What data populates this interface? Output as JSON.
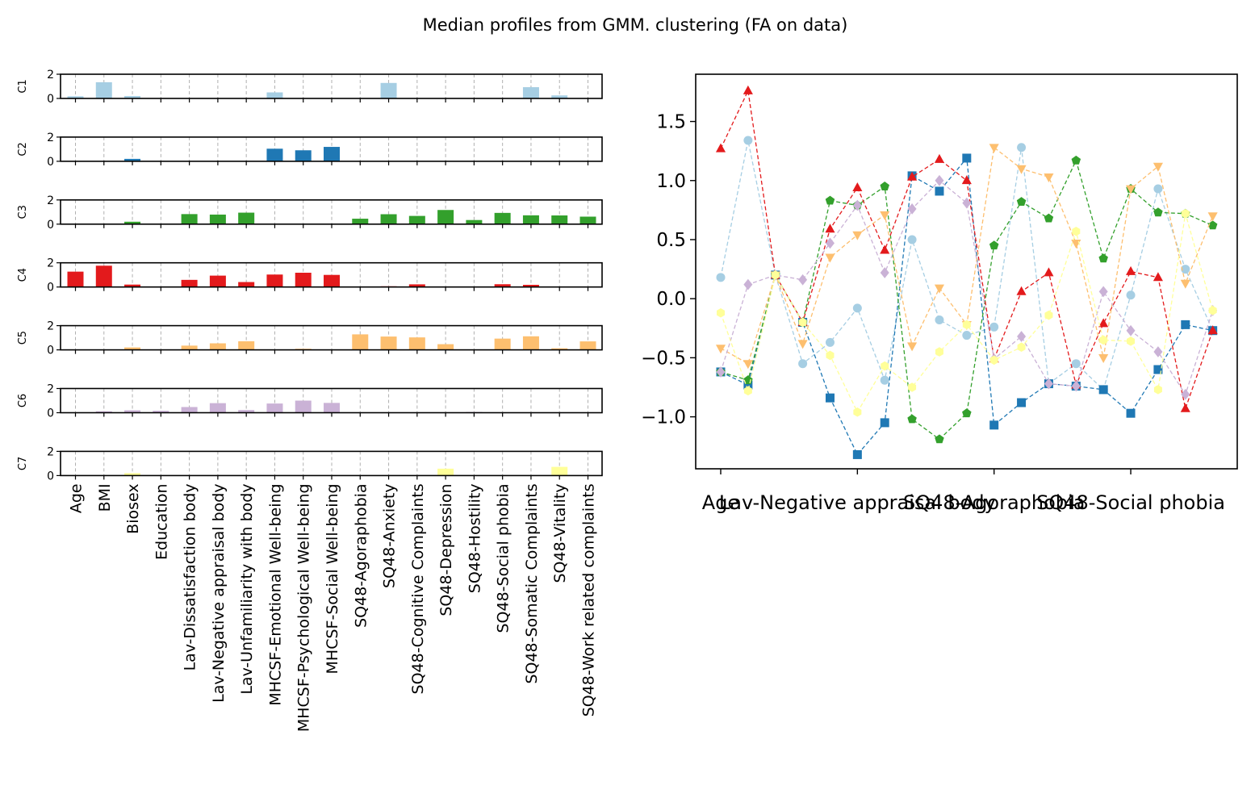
{
  "chart_data": {
    "title": "Median profiles from GMM. clustering (FA on data)",
    "categories": [
      "Age",
      "BMI",
      "Biosex",
      "Education",
      "Lav-Dissatisfaction body",
      "Lav-Negative appraisal body",
      "Lav-Unfamiliarity with body",
      "MHCSF-Emotional Well-being",
      "MHCSF-Psychological Well-being",
      "MHCSF-Social Well-being",
      "SQ48-Agoraphobia",
      "SQ48-Anxiety",
      "SQ48-Cognitive Complaints",
      "SQ48-Depression",
      "SQ48-Hostility",
      "SQ48-Social phobia",
      "SQ48-Somatic Complaints",
      "SQ48-Vitality",
      "SQ48-Work related complaints"
    ],
    "clusters": [
      {
        "name": "C1",
        "color": "#a6cee3",
        "marker": "circle",
        "values": [
          0.18,
          1.34,
          0.2,
          -0.55,
          -0.37,
          -0.08,
          -0.69,
          0.5,
          -0.18,
          -0.31,
          -0.24,
          1.28,
          -0.72,
          -0.55,
          -0.77,
          0.03,
          0.93,
          0.25,
          -0.27
        ]
      },
      {
        "name": "C2",
        "color": "#1f78b4",
        "marker": "square",
        "values": [
          -0.62,
          -0.73,
          0.2,
          -0.2,
          -0.84,
          -1.32,
          -1.05,
          1.04,
          0.91,
          1.19,
          -1.07,
          -0.88,
          -0.72,
          -0.74,
          -0.77,
          -0.97,
          -0.6,
          -0.22,
          -0.27
        ]
      },
      {
        "name": "C3",
        "color": "#33a02c",
        "marker": "pentagon",
        "values": [
          -0.62,
          -0.69,
          0.2,
          -0.2,
          0.83,
          0.79,
          0.95,
          -1.02,
          -1.19,
          -0.97,
          0.45,
          0.82,
          0.68,
          1.17,
          0.34,
          0.93,
          0.73,
          0.72,
          0.62
        ]
      },
      {
        "name": "C4",
        "color": "#e31a1c",
        "marker": "triangle-up",
        "values": [
          1.27,
          1.76,
          0.2,
          -0.2,
          0.59,
          0.94,
          0.41,
          1.03,
          1.18,
          1.0,
          -0.51,
          0.06,
          0.22,
          -0.73,
          -0.21,
          0.23,
          0.18,
          -0.93,
          -0.27
        ]
      },
      {
        "name": "C5",
        "color": "#fdbf6f",
        "marker": "triangle-down",
        "values": [
          -0.42,
          -0.55,
          0.2,
          -0.38,
          0.35,
          0.54,
          0.71,
          -0.4,
          0.09,
          -0.22,
          1.28,
          1.1,
          1.03,
          0.47,
          -0.5,
          0.93,
          1.12,
          0.13,
          0.7
        ]
      },
      {
        "name": "C6",
        "color": "#cab2d6",
        "marker": "diamond",
        "values": [
          -0.62,
          0.12,
          0.2,
          0.16,
          0.47,
          0.79,
          0.22,
          0.76,
          1.0,
          0.81,
          -0.51,
          -0.32,
          -0.72,
          -0.74,
          0.06,
          -0.27,
          -0.45,
          -0.81,
          -0.1
        ]
      },
      {
        "name": "C7",
        "color": "#ffff99",
        "marker": "hexagon",
        "values": [
          -0.12,
          -0.78,
          0.2,
          -0.2,
          -0.48,
          -0.96,
          -0.57,
          -0.75,
          -0.45,
          -0.22,
          -0.52,
          -0.41,
          -0.14,
          0.57,
          -0.35,
          -0.36,
          -0.77,
          0.72,
          -0.1
        ]
      }
    ],
    "bar_subplots": {
      "type": "bar",
      "ylim": [
        0,
        2
      ],
      "yticks": [
        0,
        2
      ],
      "grid": "vertical dashed"
    },
    "line_subplot": {
      "type": "line",
      "ylim": [
        -1.44,
        1.9
      ],
      "yticks": [
        -1.0,
        -0.5,
        0.0,
        0.5,
        1.0,
        1.5
      ],
      "ytick_labels": [
        "−1.0",
        "−0.5",
        "0.0",
        "0.5",
        "1.0",
        "1.5"
      ],
      "xtick_categories": [
        "Age",
        "Lav-Negative appraisal body",
        "SQ48-Agoraphobia",
        "SQ48-Social phobia"
      ],
      "grid": "off"
    }
  }
}
